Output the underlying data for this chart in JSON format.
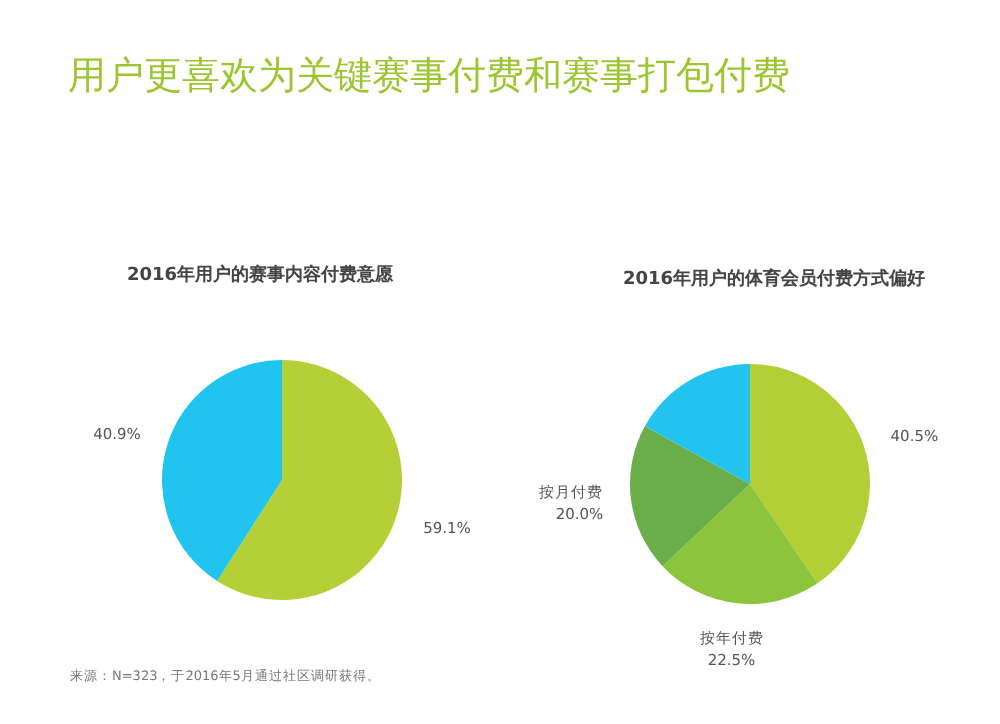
{
  "chart_data": [
    {
      "type": "pie",
      "title": "用户更喜欢为关键赛事付费和赛事打包付费",
      "subtitle": "2016年用户的赛事内容付费意愿",
      "categories": [
        null,
        null
      ],
      "values": [
        59.1,
        40.9
      ],
      "colors": [
        "#b5cf36",
        "#21c4ee"
      ],
      "value_labels": [
        "59.1%",
        "40.9%"
      ],
      "annotations": [
        "来源：N=323，于2016年5月通过社区调研获得。"
      ]
    },
    {
      "type": "pie",
      "title": "2016年用户的体育会员付费方式偏好",
      "categories": [
        null,
        "按年付费",
        "按月付费",
        null
      ],
      "values": [
        40.5,
        22.5,
        20.0,
        17.0
      ],
      "colors": [
        "#b2cf36",
        "#8cc43c",
        "#6aae4a",
        "#22c3ee"
      ],
      "value_labels": [
        "40.5%",
        "22.5%",
        "20.0%",
        null
      ]
    }
  ]
}
